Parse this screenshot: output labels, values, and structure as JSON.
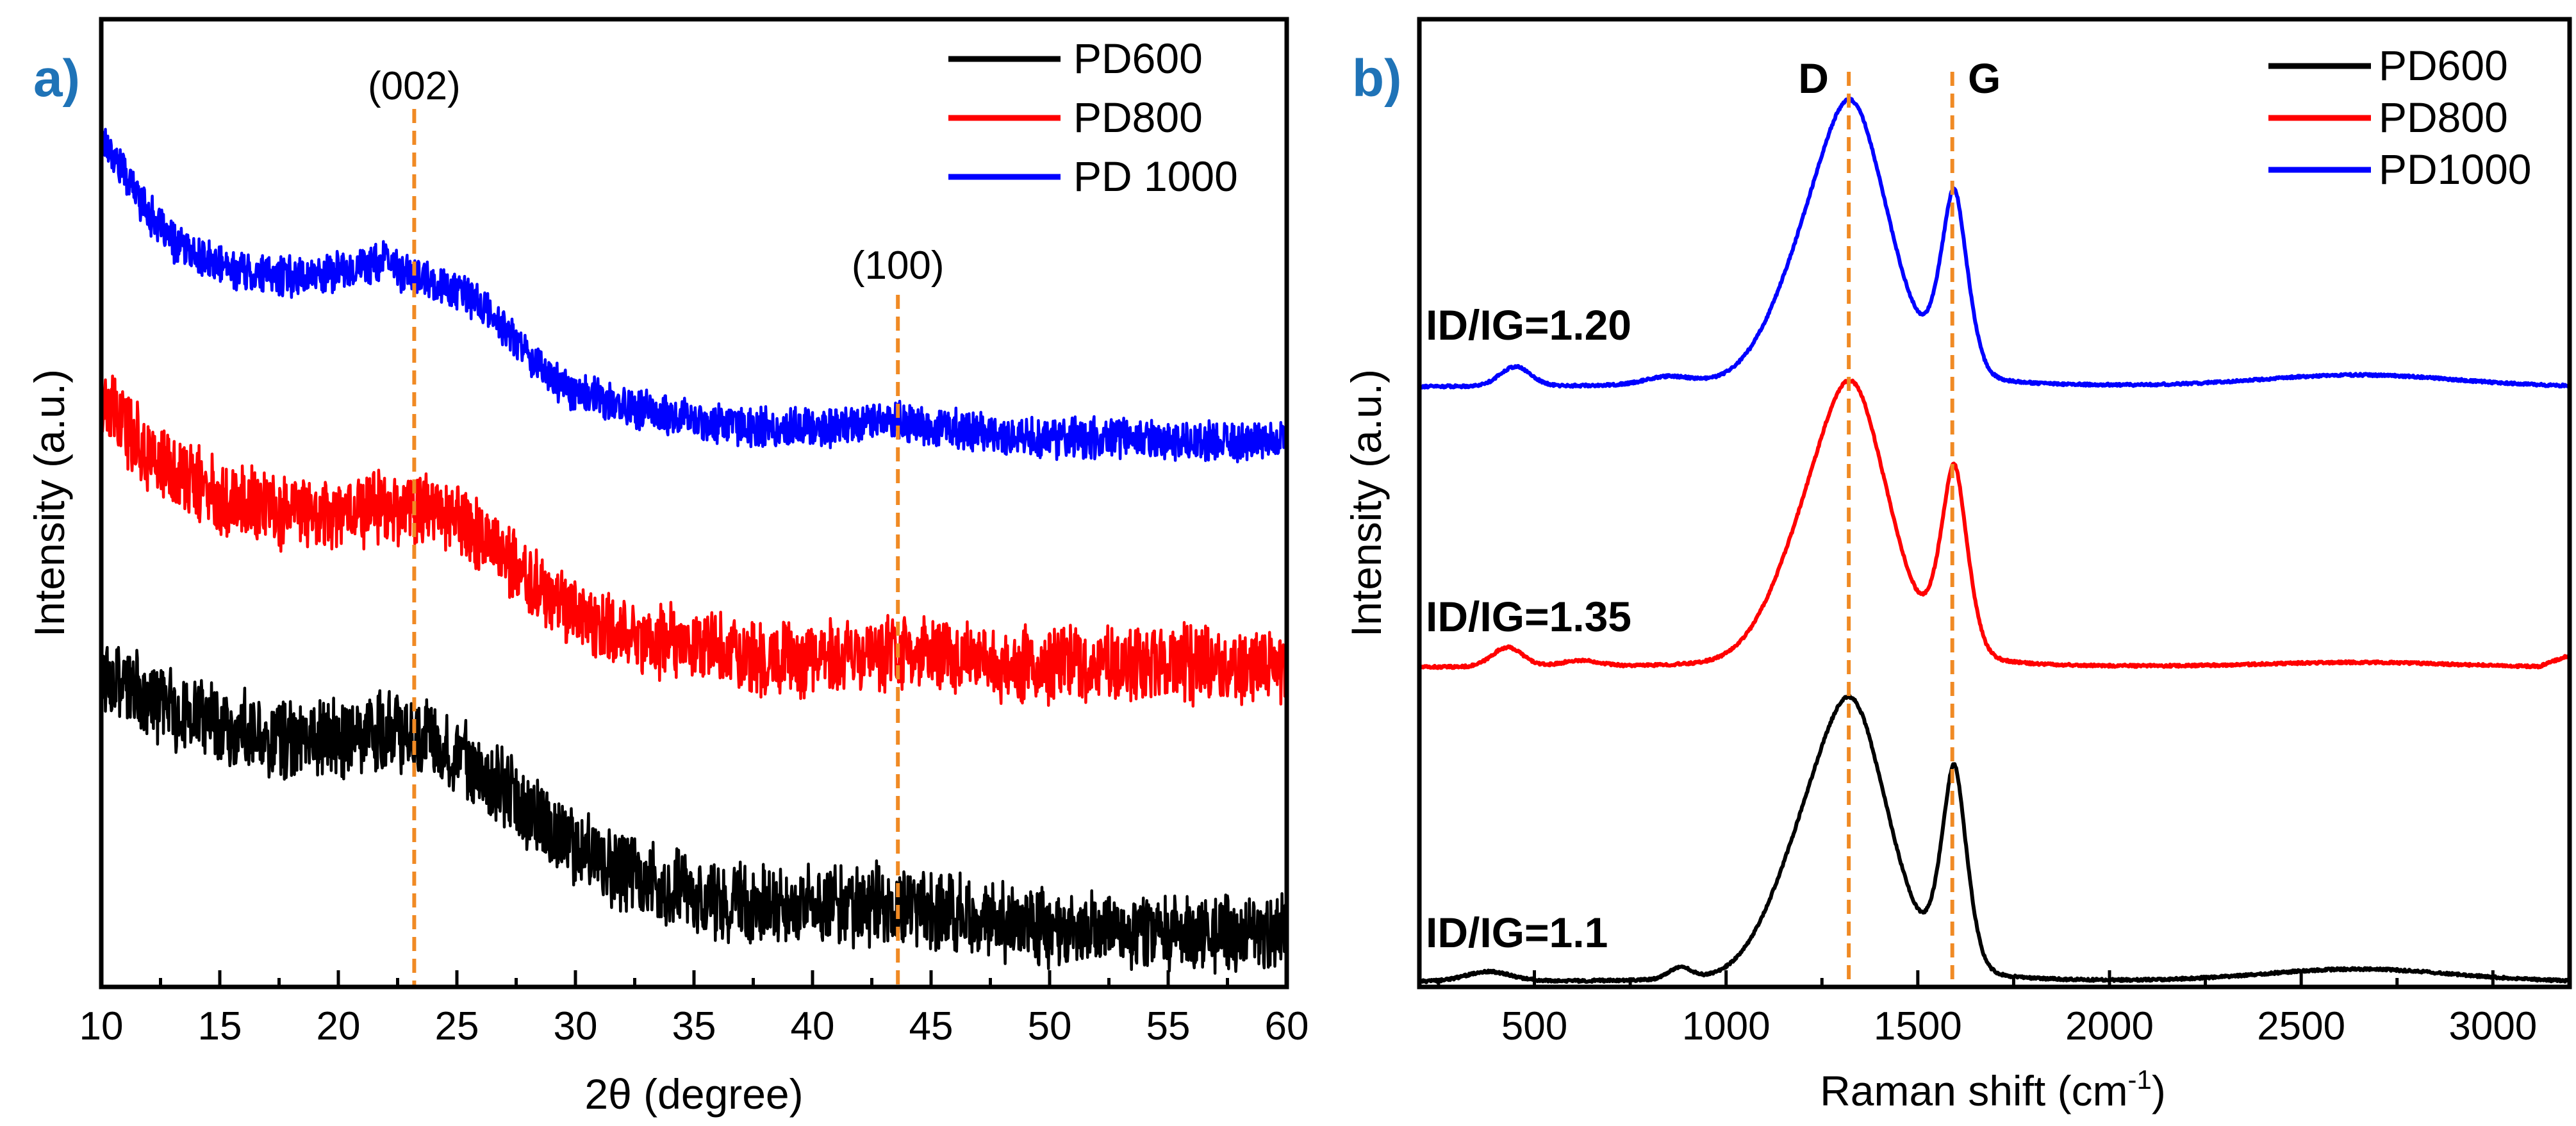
{
  "chart_data": [
    {
      "panel": "a)",
      "type": "line",
      "xlabel": "2θ (degree)",
      "ylabel": "Intensity (a.u.)",
      "xlim": [
        10,
        60
      ],
      "xticks": [
        "10",
        "15",
        "20",
        "25",
        "30",
        "35",
        "40",
        "45",
        "50",
        "55",
        "60"
      ],
      "yticks_shown": false,
      "legend": {
        "position": "top-right",
        "entries": [
          "PD600",
          "PD800",
          "PD 1000"
        ]
      },
      "annotations": [
        {
          "text": "(002)",
          "x": 23.2
        },
        {
          "text": "(100)",
          "x": 43.6
        }
      ],
      "reference_lines_x": [
        23.2,
        43.6
      ],
      "series": [
        {
          "name": "PD 1000",
          "color": "#0000ff",
          "noise": 1.8,
          "points": [
            [
              10,
              88
            ],
            [
              11,
              84
            ],
            [
              12,
              80
            ],
            [
              13,
              77
            ],
            [
              14,
              75.5
            ],
            [
              15,
              74.5
            ],
            [
              17,
              73.5
            ],
            [
              19,
              73.5
            ],
            [
              21,
              74.5
            ],
            [
              22,
              75
            ],
            [
              23,
              73.5
            ],
            [
              25,
              72
            ],
            [
              26,
              70.5
            ],
            [
              27,
              68
            ],
            [
              28,
              65.5
            ],
            [
              29,
              63
            ],
            [
              30,
              61.5
            ],
            [
              32,
              60
            ],
            [
              34,
              59
            ],
            [
              36,
              58.3
            ],
            [
              38,
              57.8
            ],
            [
              40,
              57.8
            ],
            [
              42,
              58.4
            ],
            [
              43,
              58.6
            ],
            [
              44,
              58.3
            ],
            [
              46,
              57.5
            ],
            [
              48,
              57
            ],
            [
              50,
              56.8
            ],
            [
              55,
              56.5
            ],
            [
              60,
              56.5
            ]
          ]
        },
        {
          "name": "PD800",
          "color": "#ff0000",
          "noise": 3.4,
          "points": [
            [
              10,
              60
            ],
            [
              11,
              58
            ],
            [
              12,
              55
            ],
            [
              13,
              53
            ],
            [
              15,
              51
            ],
            [
              17,
              49.5
            ],
            [
              19,
              49
            ],
            [
              21,
              49.5
            ],
            [
              22,
              50
            ],
            [
              23.5,
              49.5
            ],
            [
              25,
              48.5
            ],
            [
              26,
              47
            ],
            [
              27,
              44.5
            ],
            [
              28,
              42
            ],
            [
              29,
              40
            ],
            [
              30,
              38.5
            ],
            [
              32,
              36.5
            ],
            [
              34,
              35.5
            ],
            [
              36,
              34.5
            ],
            [
              38,
              34
            ],
            [
              40,
              34
            ],
            [
              42,
              34.3
            ],
            [
              44,
              34.5
            ],
            [
              46,
              34
            ],
            [
              48,
              33.5
            ],
            [
              50,
              33.3
            ],
            [
              55,
              33.3
            ],
            [
              60,
              33.3
            ]
          ]
        },
        {
          "name": "PD600",
          "color": "#000000",
          "noise": 3.6,
          "points": [
            [
              10,
              32
            ],
            [
              11,
              31
            ],
            [
              12,
              29.5
            ],
            [
              14,
              28
            ],
            [
              16,
              26.5
            ],
            [
              18,
              25.5
            ],
            [
              20,
              25.5
            ],
            [
              22,
              26.5
            ],
            [
              23.5,
              26
            ],
            [
              25,
              24.5
            ],
            [
              26,
              22.5
            ],
            [
              27,
              20.5
            ],
            [
              28,
              18
            ],
            [
              29,
              16
            ],
            [
              30,
              14.5
            ],
            [
              31,
              13
            ],
            [
              33,
              11
            ],
            [
              35,
              9.5
            ],
            [
              37,
              8.5
            ],
            [
              39,
              8.2
            ],
            [
              41,
              8.2
            ],
            [
              43,
              8.5
            ],
            [
              45,
              8
            ],
            [
              47,
              7
            ],
            [
              50,
              6
            ],
            [
              55,
              5.5
            ],
            [
              60,
              5.8
            ]
          ]
        }
      ]
    },
    {
      "panel": "b)",
      "type": "line",
      "xlabel": "Raman shift (cm",
      "xlabel_superscript": "-1",
      "xlabel_suffix": ")",
      "ylabel": "Intensity (a.u.)",
      "xlim": [
        200,
        3200
      ],
      "xticks": [
        "500",
        "1000",
        "1500",
        "2000",
        "2500",
        "3000"
      ],
      "yticks_shown": false,
      "legend": {
        "position": "top-right",
        "entries": [
          "PD600",
          "PD800",
          "PD1000"
        ]
      },
      "annotations": [
        {
          "text": "D",
          "x": 1320
        },
        {
          "text": "G",
          "x": 1590
        }
      ],
      "reference_lines_x": [
        1320,
        1590
      ],
      "ratio_labels": [
        "ID/IG=1.20",
        "ID/IG=1.35",
        "ID/IG=1.1"
      ],
      "series": [
        {
          "name": "PD1000",
          "color": "#0000ff",
          "offset": 62,
          "base_slope": 0,
          "wiggles": [
            [
              450,
              2,
              40
            ],
            [
              850,
              0.8,
              60
            ],
            [
              2650,
              1.2,
              250
            ]
          ],
          "d_amp": 28,
          "d_width": 100,
          "d_shoulder": 6,
          "g_amp": 19,
          "g_width": 38
        },
        {
          "name": "PD800",
          "color": "#ff0000",
          "offset": 33,
          "base_slope": 0.3,
          "wiggles": [
            [
              430,
              2,
              40
            ],
            [
              620,
              0.6,
              50
            ],
            [
              2650,
              0.5,
              250
            ]
          ],
          "d_amp": 28,
          "d_width": 100,
          "d_shoulder": 6,
          "g_amp": 19.5,
          "g_width": 38
        },
        {
          "name": "PD600",
          "color": "#000000",
          "offset": 0.5,
          "base_slope": 0,
          "wiggles": [
            [
              380,
              1,
              60
            ],
            [
              880,
              1.2,
              30
            ],
            [
              2650,
              1.3,
              250
            ]
          ],
          "d_amp": 27.5,
          "d_width": 100,
          "d_shoulder": 7,
          "g_amp": 21,
          "g_width": 36
        }
      ]
    }
  ]
}
